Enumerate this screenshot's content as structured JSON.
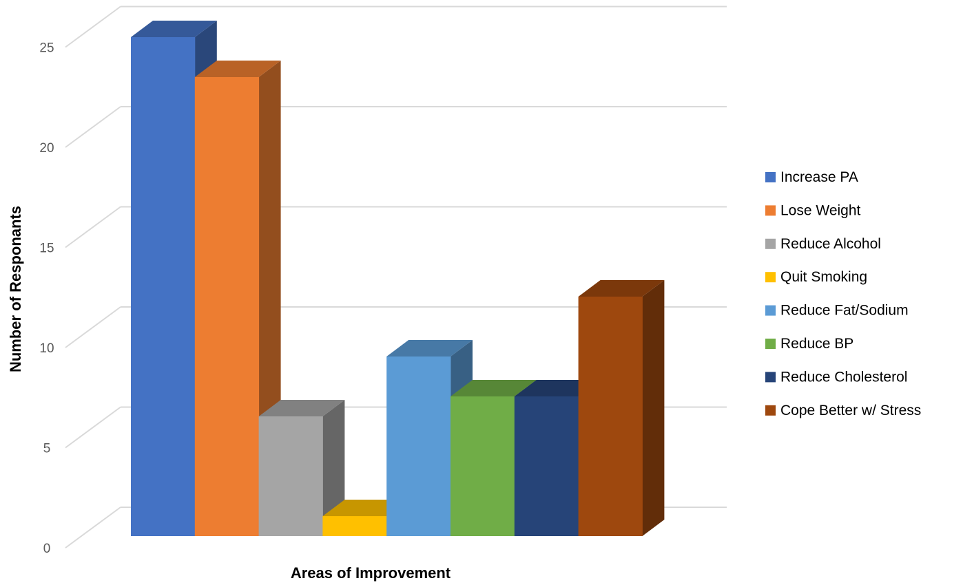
{
  "chart_data": {
    "type": "bar",
    "title": "",
    "xlabel": "Areas of Improvement",
    "ylabel": "Number of Responants",
    "ylim": [
      0,
      25
    ],
    "yticks": [
      0,
      5,
      10,
      15,
      20,
      25
    ],
    "grid": true,
    "legend_position": "right",
    "series": [
      {
        "name": "Increase PA",
        "value": 25,
        "color": "#4472C4"
      },
      {
        "name": "Lose Weight",
        "value": 23,
        "color": "#ED7D31"
      },
      {
        "name": "Reduce Alcohol",
        "value": 6,
        "color": "#A5A5A5"
      },
      {
        "name": "Quit Smoking",
        "value": 1,
        "color": "#FFC000"
      },
      {
        "name": "Reduce Fat/Sodium",
        "value": 9,
        "color": "#5B9BD5"
      },
      {
        "name": "Reduce BP",
        "value": 7,
        "color": "#70AD47"
      },
      {
        "name": "Reduce Cholesterol",
        "value": 7,
        "color": "#264478"
      },
      {
        "name": "Cope Better w/ Stress",
        "value": 12,
        "color": "#9E480E"
      }
    ]
  }
}
